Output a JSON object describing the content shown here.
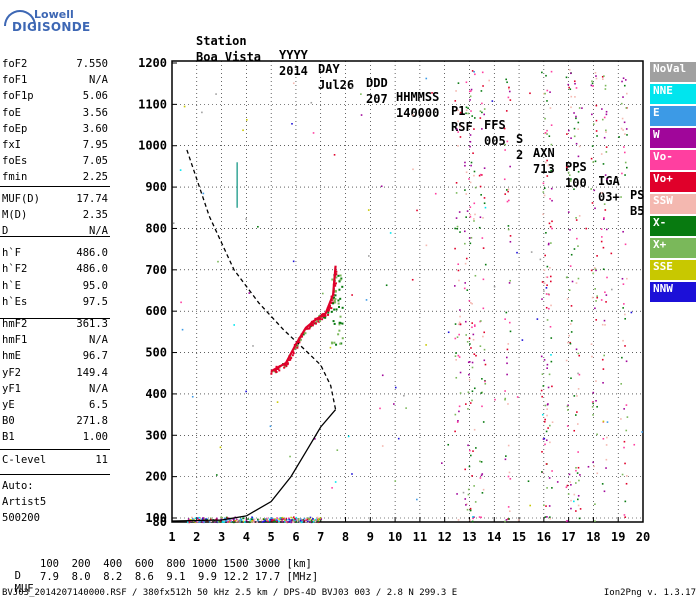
{
  "logo": {
    "line1": "Lowell",
    "line2": "DIGISONDE"
  },
  "header": {
    "labels": [
      "Station",
      "YYYY",
      "DAY",
      "DDD",
      "HHMMSS",
      "P1",
      "FFS",
      "S",
      "AXN",
      "PPS",
      "IGA",
      "PS"
    ],
    "values": [
      "Boa Vista",
      "2014",
      "Jul26",
      "207",
      "140000",
      "RSF",
      "005",
      "2",
      "713",
      "100",
      "03+",
      "B5"
    ]
  },
  "params": [
    {
      "name": "foF2",
      "value": "7.550"
    },
    {
      "name": "foF1",
      "value": "N/A"
    },
    {
      "name": "foF1p",
      "value": "5.06"
    },
    {
      "name": "foE",
      "value": "3.56"
    },
    {
      "name": "foEp",
      "value": "3.60"
    },
    {
      "name": "fxI",
      "value": "7.95"
    },
    {
      "name": "foEs",
      "value": "7.05"
    },
    {
      "name": "fmin",
      "value": "2.25"
    },
    {
      "name": "MUF(D)",
      "value": "17.74"
    },
    {
      "name": "M(D)",
      "value": "2.35"
    },
    {
      "name": "D",
      "value": "N/A"
    },
    {
      "name": "h`F",
      "value": "486.0"
    },
    {
      "name": "h`F2",
      "value": "486.0"
    },
    {
      "name": "h`E",
      "value": "95.0"
    },
    {
      "name": "h`Es",
      "value": "97.5"
    },
    {
      "name": "hmF2",
      "value": "361.3"
    },
    {
      "name": "hmF1",
      "value": "N/A"
    },
    {
      "name": "hmE",
      "value": "96.7"
    },
    {
      "name": "yF2",
      "value": "149.4"
    },
    {
      "name": "yF1",
      "value": "N/A"
    },
    {
      "name": "yE",
      "value": "6.5"
    },
    {
      "name": "B0",
      "value": "271.8"
    },
    {
      "name": "B1",
      "value": "1.00"
    },
    {
      "name": "C-level",
      "value": "11"
    }
  ],
  "auto": {
    "line1": "Auto:",
    "line2": "Artist5",
    "line3": "500200"
  },
  "legend": [
    {
      "label": "NoVal",
      "color": "#a0a0a0"
    },
    {
      "label": "NNE",
      "color": "#00e5ee"
    },
    {
      "label": "E",
      "color": "#3c9ae6"
    },
    {
      "label": "W",
      "color": "#a0069a"
    },
    {
      "label": "Vo-",
      "color": "#ff3fa0"
    },
    {
      "label": "Vo+",
      "color": "#e0002a"
    },
    {
      "label": "SSW",
      "color": "#f4b8b0"
    },
    {
      "label": "X-",
      "color": "#087a10"
    },
    {
      "label": "X+",
      "color": "#7ab85a"
    },
    {
      "label": "SSE",
      "color": "#c8c800"
    },
    {
      "label": "NNW",
      "color": "#1c10d8"
    }
  ],
  "bottom": {
    "d_label": "D",
    "d_values": "100  200  400  600  800 1000 1500 3000 [km]",
    "muf_label": "MUF",
    "muf_values": "7.9  8.0  8.2  8.6  9.1  9.9 12.2 17.7 [MHz]"
  },
  "footer": {
    "left": "BVJ03_2014207140000.RSF / 380fx512h 50 kHz 2.5 km / DPS-4D BVJ03 003 / 2.8 N 299.3 E",
    "right": "Ion2Png v. 1.3.17"
  },
  "chart_data": {
    "type": "scatter",
    "xlim": [
      1,
      20
    ],
    "ylim": [
      80,
      1200
    ],
    "xticks": [
      1,
      2,
      3,
      4,
      5,
      6,
      7,
      8,
      9,
      10,
      11,
      12,
      13,
      14,
      15,
      16,
      17,
      18,
      19,
      20
    ],
    "yticks": [
      80,
      100,
      200,
      300,
      400,
      500,
      600,
      700,
      800,
      900,
      1000,
      1100,
      1200
    ],
    "series": [
      {
        "style": "dashed",
        "points": [
          [
            1.6,
            990
          ],
          [
            2.5,
            830
          ],
          [
            3.5,
            700
          ],
          [
            4.5,
            620
          ],
          [
            5.5,
            555
          ],
          [
            6.3,
            510
          ],
          [
            7.0,
            470
          ],
          [
            7.4,
            420
          ],
          [
            7.6,
            362
          ]
        ]
      },
      {
        "style": "solid",
        "points": [
          [
            1.0,
            85
          ],
          [
            3.0,
            90
          ],
          [
            4.0,
            105
          ],
          [
            5.0,
            140
          ],
          [
            5.8,
            200
          ],
          [
            6.4,
            260
          ],
          [
            7.0,
            320
          ],
          [
            7.6,
            362
          ]
        ]
      },
      {
        "style": "trace",
        "color": "#e0002a",
        "points": [
          [
            5.0,
            455
          ],
          [
            5.6,
            475
          ],
          [
            6.0,
            520
          ],
          [
            6.4,
            560
          ],
          [
            6.8,
            580
          ],
          [
            7.2,
            595
          ],
          [
            7.5,
            640
          ],
          [
            7.6,
            710
          ]
        ]
      }
    ]
  }
}
